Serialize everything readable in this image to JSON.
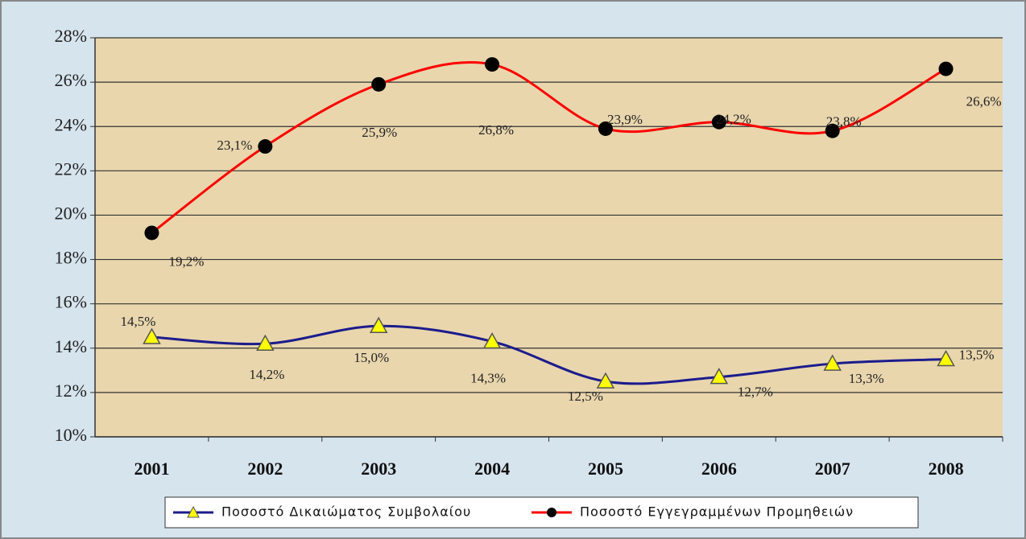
{
  "chart_data": {
    "type": "line",
    "categories": [
      "2001",
      "2002",
      "2003",
      "2004",
      "2005",
      "2006",
      "2007",
      "2008"
    ],
    "series": [
      {
        "name": "Ποσοστό Δικαιώματος Συμβολαίου",
        "color": "#1c1c8c",
        "marker": "triangle",
        "values": [
          14.5,
          14.2,
          15.0,
          14.3,
          12.5,
          12.7,
          13.3,
          13.5
        ],
        "value_labels": [
          "14,5%",
          "14,2%",
          "15,0%",
          "14,3%",
          "12,5%",
          "12,7%",
          "13,3%",
          "13,5%"
        ]
      },
      {
        "name": "Ποσοστό Εγγεγραμμένων Προμηθειών",
        "color": "#ff0000",
        "marker": "circle",
        "values": [
          19.2,
          23.1,
          25.9,
          26.8,
          23.9,
          24.2,
          23.8,
          26.6
        ],
        "value_labels": [
          "19,2%",
          "23,1%",
          "25,9%",
          "26,8%",
          "23,9%",
          "24,2%",
          "23,8%",
          "26,6%"
        ]
      }
    ],
    "ylim": [
      10,
      28
    ],
    "yticks": [
      {
        "value": 10,
        "label": "10%"
      },
      {
        "value": 12,
        "label": "12%"
      },
      {
        "value": 14,
        "label": "14%"
      },
      {
        "value": 16,
        "label": "16%"
      },
      {
        "value": 18,
        "label": "18%"
      },
      {
        "value": 20,
        "label": "20%"
      },
      {
        "value": 22,
        "label": "22%"
      },
      {
        "value": 24,
        "label": "24%"
      },
      {
        "value": 26,
        "label": "26%"
      },
      {
        "value": 28,
        "label": "28%"
      }
    ],
    "grid": true,
    "legend": "bottom",
    "smooth": true
  }
}
